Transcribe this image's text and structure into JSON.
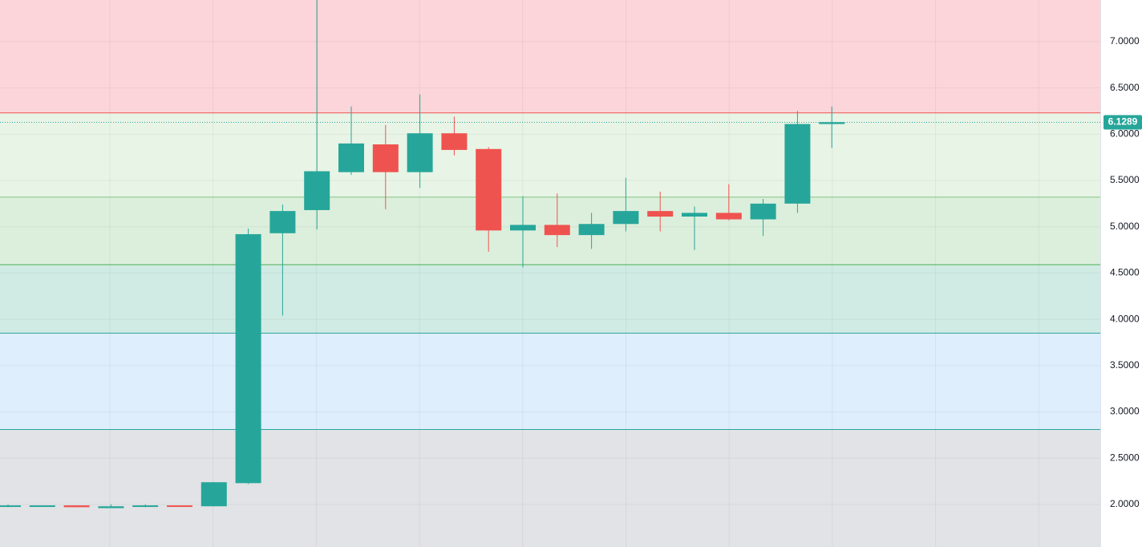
{
  "chart_data": {
    "type": "candlestick",
    "categories": [
      null,
      null,
      null,
      null,
      null,
      null,
      null,
      null,
      null,
      null,
      null,
      null,
      null,
      null,
      null,
      null,
      null,
      null,
      null,
      null,
      null,
      null,
      null,
      null,
      null
    ],
    "open": [
      1.98,
      1.98,
      1.99,
      1.96,
      1.98,
      1.99,
      1.98,
      2.23,
      4.93,
      5.18,
      5.59,
      5.89,
      5.59,
      6.01,
      5.84,
      4.96,
      5.02,
      4.91,
      5.03,
      5.17,
      5.11,
      5.15,
      5.08,
      5.25,
      6.11
    ],
    "high": [
      2.0,
      1.99,
      1.99,
      2.0,
      2.0,
      1.99,
      2.24,
      4.98,
      5.24,
      7.45,
      6.3,
      6.1,
      6.43,
      6.19,
      5.86,
      5.33,
      5.36,
      5.15,
      5.53,
      5.38,
      5.22,
      5.46,
      5.3,
      6.25,
      6.3
    ],
    "low": [
      1.97,
      1.98,
      1.97,
      1.96,
      1.97,
      1.98,
      1.98,
      2.22,
      4.04,
      4.97,
      5.56,
      5.19,
      5.42,
      5.77,
      4.73,
      4.56,
      4.78,
      4.76,
      4.95,
      4.95,
      4.75,
      5.07,
      4.9,
      5.15,
      5.85
    ],
    "close": [
      1.99,
      1.99,
      1.97,
      1.98,
      1.99,
      1.98,
      2.24,
      4.92,
      5.17,
      5.6,
      5.9,
      5.59,
      6.01,
      5.83,
      4.96,
      5.02,
      4.91,
      5.03,
      5.17,
      5.11,
      5.15,
      5.08,
      5.25,
      6.11,
      6.13
    ],
    "up_color": "#26a69a",
    "down_color": "#ef5350",
    "ylim": [
      1.54,
      7.45
    ],
    "yticks": [
      {
        "value": 2,
        "label": "2.0000"
      },
      {
        "value": 2.5,
        "label": "2.5000"
      },
      {
        "value": 3,
        "label": "3.0000"
      },
      {
        "value": 3.5,
        "label": "3.5000"
      },
      {
        "value": 4,
        "label": "4.0000"
      },
      {
        "value": 4.5,
        "label": "4.5000"
      },
      {
        "value": 5,
        "label": "5.0000"
      },
      {
        "value": 5.5,
        "label": "5.5000"
      },
      {
        "value": 6,
        "label": "6.0000"
      },
      {
        "value": 6.5,
        "label": "6.5000"
      },
      {
        "value": 7,
        "label": "7.0000"
      }
    ],
    "grid": true,
    "levels": [
      6.23,
      5.32,
      4.59,
      3.85,
      2.81
    ],
    "level_colors": [
      "#ef5350",
      "#81c784",
      "#4caf50",
      "#26a69a",
      "#26a69a"
    ],
    "zone_colors": [
      "#fbd5d9",
      "#e8f4e6",
      "#dcefdc",
      "#d0ebe4",
      "#dfeefc",
      "#e2e3e6"
    ],
    "last_price": 6.1289,
    "last_price_color": "#26a69a"
  }
}
